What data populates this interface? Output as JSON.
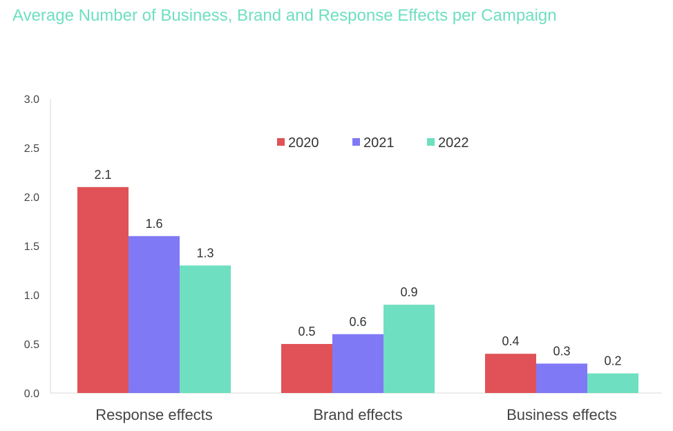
{
  "chart_data": {
    "type": "bar",
    "title": "Average Number of Business, Brand and Response Effects per Campaign",
    "categories": [
      "Response effects",
      "Brand effects",
      "Business effects"
    ],
    "series": [
      {
        "name": "2020",
        "color": "#E05257",
        "values": [
          2.1,
          0.5,
          0.4
        ]
      },
      {
        "name": "2021",
        "color": "#8079F6",
        "values": [
          1.6,
          0.6,
          0.3
        ]
      },
      {
        "name": "2022",
        "color": "#6EDFC0",
        "values": [
          1.3,
          0.9,
          0.2
        ]
      }
    ],
    "y_ticks": [
      "0.0",
      "0.5",
      "1.0",
      "1.5",
      "2.0",
      "2.5",
      "3.0"
    ],
    "ylim": [
      0,
      3.0
    ],
    "grid": false,
    "data_labels": true,
    "legend_position": "top-center",
    "title_color": "#6EDFC0",
    "axis_color": "#D9D9D9"
  }
}
